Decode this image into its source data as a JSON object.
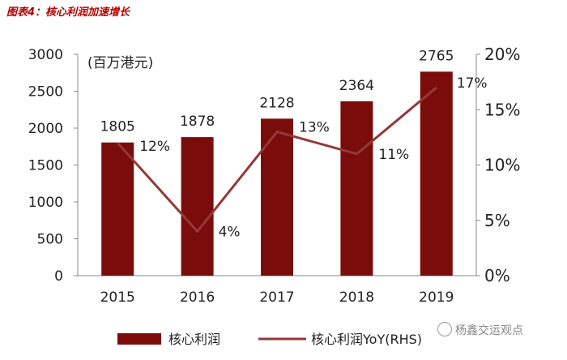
{
  "header": {
    "figure_title": "图表4：核心利润加速增长"
  },
  "chart_data": {
    "type": "bar",
    "categories": [
      "2015",
      "2016",
      "2017",
      "2018",
      "2019"
    ],
    "series": [
      {
        "name": "核心利润",
        "type": "bar",
        "axis": "left",
        "values": [
          1805,
          1878,
          2128,
          2364,
          2765
        ],
        "color": "#7b0c0c"
      },
      {
        "name": "核心利润YoY(RHS)",
        "type": "line",
        "axis": "right",
        "values": [
          12,
          4,
          13,
          11,
          17
        ],
        "color": "#943838"
      }
    ],
    "data_labels": {
      "bars": [
        "1805",
        "1878",
        "2128",
        "2364",
        "2765"
      ],
      "line": [
        "12%",
        "4%",
        "13%",
        "11%",
        "17%"
      ]
    },
    "unit_label": "(百万港元)",
    "y_left": {
      "min": 0,
      "max": 3000,
      "ticks": [
        "0",
        "500",
        "1000",
        "1500",
        "2000",
        "2500",
        "3000"
      ]
    },
    "y_right": {
      "min": 0,
      "max": 20,
      "ticks": [
        "0%",
        "5%",
        "10%",
        "15%",
        "20%"
      ]
    },
    "grid": false,
    "legend_position": "bottom"
  },
  "watermark": "杨鑫交运观点"
}
